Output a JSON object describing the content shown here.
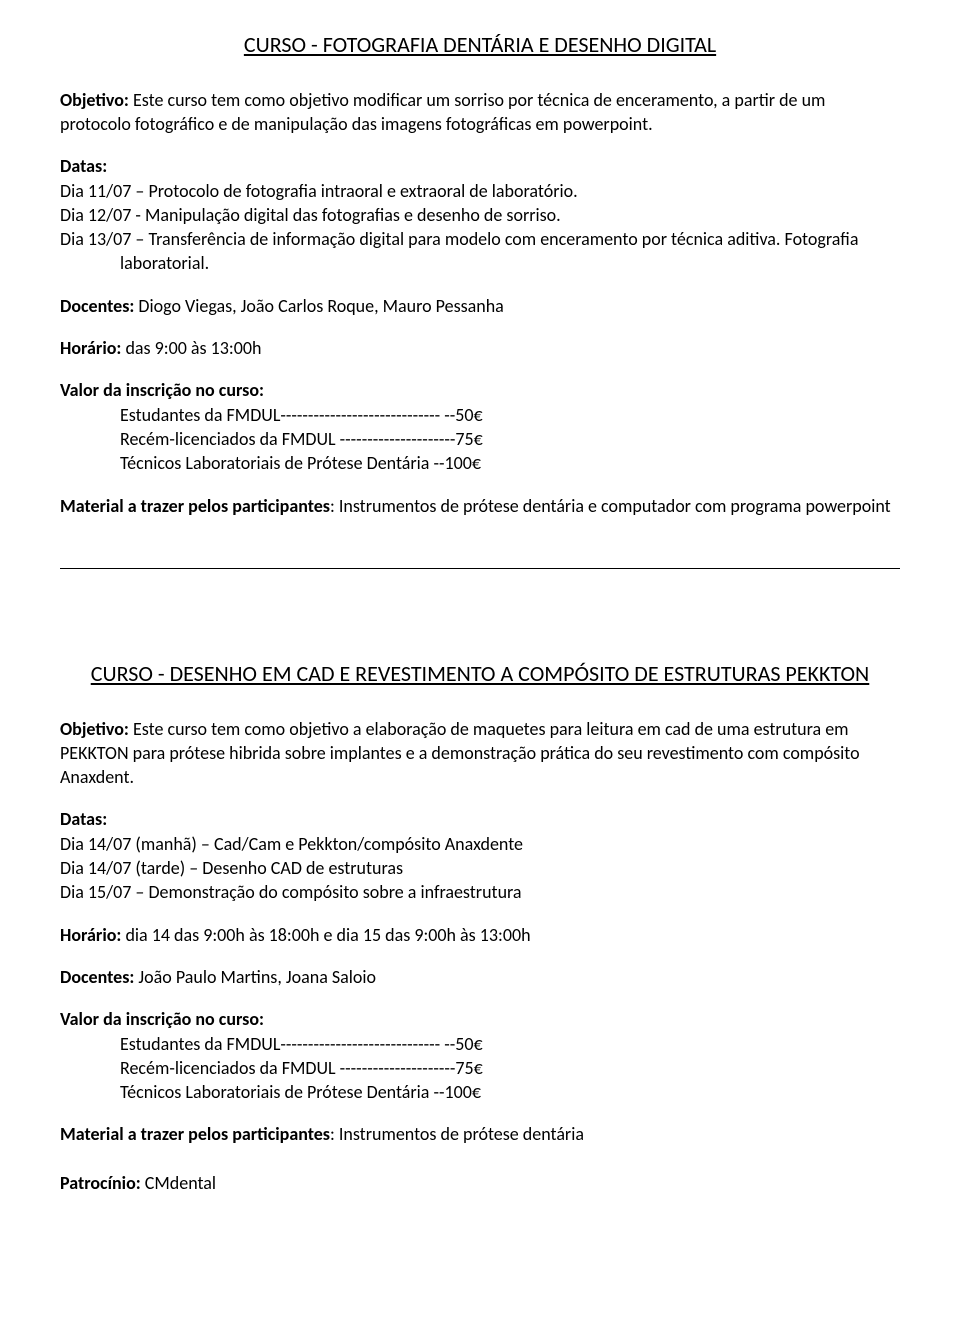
{
  "course1": {
    "title": "CURSO - FOTOGRAFIA DENTÁRIA E DESENHO DIGITAL",
    "objective_label": "Objetivo:",
    "objective_text": " Este curso tem como objetivo modificar um sorriso por técnica de enceramento, a partir de um protocolo fotográfico e de manipulação das imagens fotográficas em powerpoint.",
    "dates_label": "Datas:",
    "date1": "Dia 11/07 – Protocolo de fotografia intraoral e extraoral de laboratório.",
    "date2": "Dia 12/07 - Manipulação digital das fotografias e desenho de sorriso.",
    "date3a": "Dia 13/07 – Transferência de informação digital para modelo com enceramento por técnica aditiva. Fotografia",
    "date3b": "laboratorial.",
    "teachers_label": "Docentes:",
    "teachers_text": " Diogo Viegas, João Carlos Roque, Mauro Pessanha",
    "schedule_label": "Horário:",
    "schedule_text": " das 9:00 às 13:00h",
    "price_label": "Valor da inscrição no curso:",
    "price1": "Estudantes da FMDUL----------------------------- --50€",
    "price2": "Recém-licenciados da FMDUL ---------------------75€",
    "price3": "Técnicos Laboratoriais de Prótese Dentária --100€",
    "material_label": "Material a trazer pelos participantes",
    "material_text": ": Instrumentos de prótese dentária e computador com programa powerpoint"
  },
  "course2": {
    "title": "CURSO - DESENHO EM CAD E REVESTIMENTO A COMPÓSITO DE ESTRUTURAS PEKKTON",
    "objective_label": "Objetivo:",
    "objective_text": " Este curso tem como objetivo a elaboração de maquetes para leitura em cad de uma estrutura em PEKKTON para prótese hibrida sobre implantes e a demonstração prática do seu revestimento com compósito Anaxdent.",
    "dates_label": "Datas:",
    "date1": "Dia 14/07 (manhã) – Cad/Cam e Pekkton/compósito Anaxdente",
    "date2": "Dia 14/07 (tarde) – Desenho CAD de estruturas",
    "date3": "Dia 15/07 – Demonstração do compósito sobre a infraestrutura",
    "schedule_label": "Horário:",
    "schedule_text": "  dia 14 das 9:00h às 18:00h e dia 15 das 9:00h às 13:00h",
    "teachers_label": "Docentes:",
    "teachers_text": " João Paulo Martins, Joana Saloio",
    "price_label": "Valor da inscrição no curso:",
    "price1": "Estudantes da FMDUL----------------------------- --50€",
    "price2": "Recém-licenciados da FMDUL ---------------------75€",
    "price3": "Técnicos Laboratoriais de Prótese Dentária --100€",
    "material_label": "Material a trazer pelos participantes",
    "material_text": ": Instrumentos de prótese dentária",
    "sponsor_label": "Patrocínio:",
    "sponsor_text": " CMdental"
  }
}
